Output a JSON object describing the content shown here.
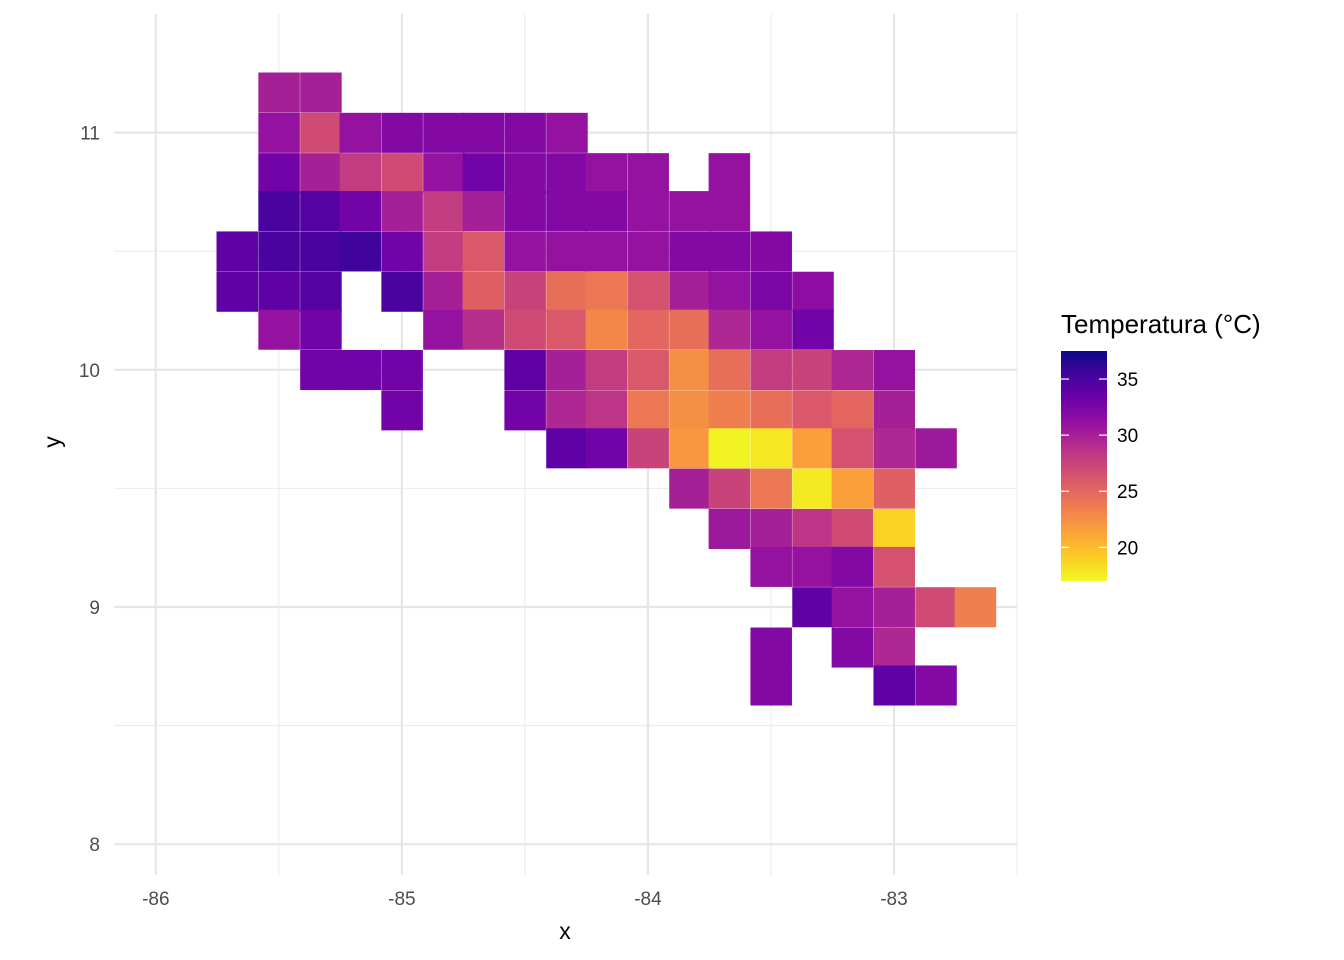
{
  "chart_data": {
    "type": "heatmap",
    "xlabel": "x",
    "ylabel": "y",
    "xlim": [
      -86.17,
      -82.5
    ],
    "ylim": [
      7.87,
      11.5
    ],
    "x_major_ticks": [
      -86,
      -85,
      -84,
      -83
    ],
    "x_tick_labels": [
      "-86",
      "-85",
      "-84",
      "-83"
    ],
    "y_major_ticks": [
      8,
      9,
      10,
      11
    ],
    "y_tick_labels": [
      "8",
      "9",
      "10",
      "11"
    ],
    "x_minor_ticks": [
      -85.5,
      -84.5,
      -83.5,
      -82.5
    ],
    "y_minor_ticks": [
      8.5,
      9.5,
      10.5
    ],
    "cell_width": 0.1667,
    "cell_height": 0.1667,
    "grid": true,
    "legend": {
      "title": "Temperatura (°C)",
      "position": "right",
      "range": [
        17,
        37.5
      ],
      "breaks": [
        20,
        25,
        30,
        35
      ],
      "labels": [
        "20",
        "25",
        "30",
        "35"
      ],
      "palette": "plasma (reversed)"
    },
    "cells": [
      {
        "x": -85.5,
        "y": 11.17,
        "v": 30
      },
      {
        "x": -85.33,
        "y": 11.17,
        "v": 30
      },
      {
        "x": -85.5,
        "y": 11.0,
        "v": 31
      },
      {
        "x": -85.33,
        "y": 11.0,
        "v": 27
      },
      {
        "x": -85.17,
        "y": 11.0,
        "v": 31
      },
      {
        "x": -85.0,
        "y": 11.0,
        "v": 32
      },
      {
        "x": -84.83,
        "y": 11.0,
        "v": 32
      },
      {
        "x": -84.67,
        "y": 11.0,
        "v": 32
      },
      {
        "x": -84.5,
        "y": 11.0,
        "v": 32
      },
      {
        "x": -84.33,
        "y": 11.0,
        "v": 31
      },
      {
        "x": -85.5,
        "y": 10.83,
        "v": 33
      },
      {
        "x": -85.33,
        "y": 10.83,
        "v": 30
      },
      {
        "x": -85.17,
        "y": 10.83,
        "v": 28
      },
      {
        "x": -85.0,
        "y": 10.83,
        "v": 27
      },
      {
        "x": -84.83,
        "y": 10.83,
        "v": 31
      },
      {
        "x": -84.67,
        "y": 10.83,
        "v": 33
      },
      {
        "x": -84.5,
        "y": 10.83,
        "v": 32
      },
      {
        "x": -84.33,
        "y": 10.83,
        "v": 32
      },
      {
        "x": -84.17,
        "y": 10.83,
        "v": 31
      },
      {
        "x": -84.0,
        "y": 10.83,
        "v": 31
      },
      {
        "x": -83.67,
        "y": 10.83,
        "v": 31
      },
      {
        "x": -85.5,
        "y": 10.67,
        "v": 35
      },
      {
        "x": -85.33,
        "y": 10.67,
        "v": 34.5
      },
      {
        "x": -85.17,
        "y": 10.67,
        "v": 33
      },
      {
        "x": -85.0,
        "y": 10.67,
        "v": 30
      },
      {
        "x": -84.83,
        "y": 10.67,
        "v": 28
      },
      {
        "x": -84.67,
        "y": 10.67,
        "v": 30
      },
      {
        "x": -84.5,
        "y": 10.67,
        "v": 32
      },
      {
        "x": -84.33,
        "y": 10.67,
        "v": 32
      },
      {
        "x": -84.17,
        "y": 10.67,
        "v": 32
      },
      {
        "x": -84.0,
        "y": 10.67,
        "v": 31
      },
      {
        "x": -83.83,
        "y": 10.67,
        "v": 31
      },
      {
        "x": -83.67,
        "y": 10.67,
        "v": 31
      },
      {
        "x": -85.67,
        "y": 10.5,
        "v": 34
      },
      {
        "x": -85.5,
        "y": 10.5,
        "v": 35
      },
      {
        "x": -85.33,
        "y": 10.5,
        "v": 35
      },
      {
        "x": -85.17,
        "y": 10.5,
        "v": 35.5
      },
      {
        "x": -85.0,
        "y": 10.5,
        "v": 33
      },
      {
        "x": -84.83,
        "y": 10.5,
        "v": 28
      },
      {
        "x": -84.67,
        "y": 10.5,
        "v": 26
      },
      {
        "x": -84.5,
        "y": 10.5,
        "v": 31
      },
      {
        "x": -84.33,
        "y": 10.5,
        "v": 31
      },
      {
        "x": -84.17,
        "y": 10.5,
        "v": 31
      },
      {
        "x": -84.0,
        "y": 10.5,
        "v": 31
      },
      {
        "x": -83.83,
        "y": 10.5,
        "v": 32
      },
      {
        "x": -83.67,
        "y": 10.5,
        "v": 32
      },
      {
        "x": -83.5,
        "y": 10.5,
        "v": 32
      },
      {
        "x": -85.67,
        "y": 10.33,
        "v": 34
      },
      {
        "x": -85.5,
        "y": 10.33,
        "v": 34
      },
      {
        "x": -85.33,
        "y": 10.33,
        "v": 34.5
      },
      {
        "x": -85.0,
        "y": 10.33,
        "v": 35
      },
      {
        "x": -84.83,
        "y": 10.33,
        "v": 30
      },
      {
        "x": -84.67,
        "y": 10.33,
        "v": 25.5
      },
      {
        "x": -84.5,
        "y": 10.33,
        "v": 27.5
      },
      {
        "x": -84.33,
        "y": 10.33,
        "v": 24.5
      },
      {
        "x": -84.17,
        "y": 10.33,
        "v": 24
      },
      {
        "x": -84.0,
        "y": 10.33,
        "v": 26.5
      },
      {
        "x": -83.83,
        "y": 10.33,
        "v": 30
      },
      {
        "x": -83.67,
        "y": 10.33,
        "v": 31
      },
      {
        "x": -83.5,
        "y": 10.33,
        "v": 32.5
      },
      {
        "x": -83.33,
        "y": 10.33,
        "v": 31.5
      },
      {
        "x": -85.5,
        "y": 10.17,
        "v": 31
      },
      {
        "x": -85.33,
        "y": 10.17,
        "v": 33
      },
      {
        "x": -84.83,
        "y": 10.17,
        "v": 31
      },
      {
        "x": -84.67,
        "y": 10.17,
        "v": 29
      },
      {
        "x": -84.5,
        "y": 10.17,
        "v": 27
      },
      {
        "x": -84.33,
        "y": 10.17,
        "v": 26
      },
      {
        "x": -84.17,
        "y": 10.17,
        "v": 23
      },
      {
        "x": -84.0,
        "y": 10.17,
        "v": 25
      },
      {
        "x": -83.83,
        "y": 10.17,
        "v": 24.5
      },
      {
        "x": -83.67,
        "y": 10.17,
        "v": 29.5
      },
      {
        "x": -83.5,
        "y": 10.17,
        "v": 31
      },
      {
        "x": -83.33,
        "y": 10.17,
        "v": 33
      },
      {
        "x": -85.33,
        "y": 10.0,
        "v": 33
      },
      {
        "x": -85.17,
        "y": 10.0,
        "v": 33
      },
      {
        "x": -85.0,
        "y": 10.0,
        "v": 33
      },
      {
        "x": -84.5,
        "y": 10.0,
        "v": 34
      },
      {
        "x": -84.33,
        "y": 10.0,
        "v": 30
      },
      {
        "x": -84.17,
        "y": 10.0,
        "v": 28
      },
      {
        "x": -84.0,
        "y": 10.0,
        "v": 26
      },
      {
        "x": -83.83,
        "y": 10.0,
        "v": 22.5
      },
      {
        "x": -83.67,
        "y": 10.0,
        "v": 24.5
      },
      {
        "x": -83.5,
        "y": 10.0,
        "v": 28
      },
      {
        "x": -83.33,
        "y": 10.0,
        "v": 27.5
      },
      {
        "x": -83.17,
        "y": 10.0,
        "v": 29.5
      },
      {
        "x": -83.0,
        "y": 10.0,
        "v": 31
      },
      {
        "x": -85.0,
        "y": 9.83,
        "v": 33
      },
      {
        "x": -84.5,
        "y": 9.83,
        "v": 33
      },
      {
        "x": -84.33,
        "y": 9.83,
        "v": 29.5
      },
      {
        "x": -84.17,
        "y": 9.83,
        "v": 28.5
      },
      {
        "x": -84.0,
        "y": 9.83,
        "v": 24
      },
      {
        "x": -83.83,
        "y": 9.83,
        "v": 22.5
      },
      {
        "x": -83.67,
        "y": 9.83,
        "v": 23.5
      },
      {
        "x": -83.5,
        "y": 9.83,
        "v": 24.5
      },
      {
        "x": -83.33,
        "y": 9.83,
        "v": 26
      },
      {
        "x": -83.17,
        "y": 9.83,
        "v": 25
      },
      {
        "x": -83.0,
        "y": 9.83,
        "v": 30
      },
      {
        "x": -84.33,
        "y": 9.67,
        "v": 34
      },
      {
        "x": -84.17,
        "y": 9.67,
        "v": 33
      },
      {
        "x": -84.0,
        "y": 9.67,
        "v": 27.5
      },
      {
        "x": -83.83,
        "y": 9.67,
        "v": 22
      },
      {
        "x": -83.67,
        "y": 9.67,
        "v": 17.3
      },
      {
        "x": -83.5,
        "y": 9.67,
        "v": 17.8
      },
      {
        "x": -83.33,
        "y": 9.67,
        "v": 21.5
      },
      {
        "x": -83.17,
        "y": 9.67,
        "v": 26.5
      },
      {
        "x": -83.0,
        "y": 9.67,
        "v": 29.5
      },
      {
        "x": -82.83,
        "y": 9.67,
        "v": 30.5
      },
      {
        "x": -83.83,
        "y": 9.5,
        "v": 30
      },
      {
        "x": -83.67,
        "y": 9.5,
        "v": 27.5
      },
      {
        "x": -83.5,
        "y": 9.5,
        "v": 24
      },
      {
        "x": -83.33,
        "y": 9.5,
        "v": 17.7
      },
      {
        "x": -83.17,
        "y": 9.5,
        "v": 21.5
      },
      {
        "x": -83.0,
        "y": 9.5,
        "v": 25.5
      },
      {
        "x": -83.67,
        "y": 9.33,
        "v": 30.5
      },
      {
        "x": -83.5,
        "y": 9.33,
        "v": 30
      },
      {
        "x": -83.33,
        "y": 9.33,
        "v": 28.5
      },
      {
        "x": -83.17,
        "y": 9.33,
        "v": 27
      },
      {
        "x": -83.0,
        "y": 9.33,
        "v": 18.8
      },
      {
        "x": -83.5,
        "y": 9.17,
        "v": 31
      },
      {
        "x": -83.33,
        "y": 9.17,
        "v": 31
      },
      {
        "x": -83.17,
        "y": 9.17,
        "v": 32
      },
      {
        "x": -83.0,
        "y": 9.17,
        "v": 26.5
      },
      {
        "x": -83.33,
        "y": 9.0,
        "v": 34
      },
      {
        "x": -83.17,
        "y": 9.0,
        "v": 31
      },
      {
        "x": -83.0,
        "y": 9.0,
        "v": 30
      },
      {
        "x": -82.83,
        "y": 9.0,
        "v": 27
      },
      {
        "x": -82.67,
        "y": 9.0,
        "v": 23.5
      },
      {
        "x": -83.5,
        "y": 8.83,
        "v": 32
      },
      {
        "x": -83.17,
        "y": 8.83,
        "v": 32
      },
      {
        "x": -83.0,
        "y": 8.83,
        "v": 29.5
      },
      {
        "x": -83.5,
        "y": 8.67,
        "v": 32
      },
      {
        "x": -83.0,
        "y": 8.67,
        "v": 34
      },
      {
        "x": -82.83,
        "y": 8.67,
        "v": 32
      }
    ]
  }
}
